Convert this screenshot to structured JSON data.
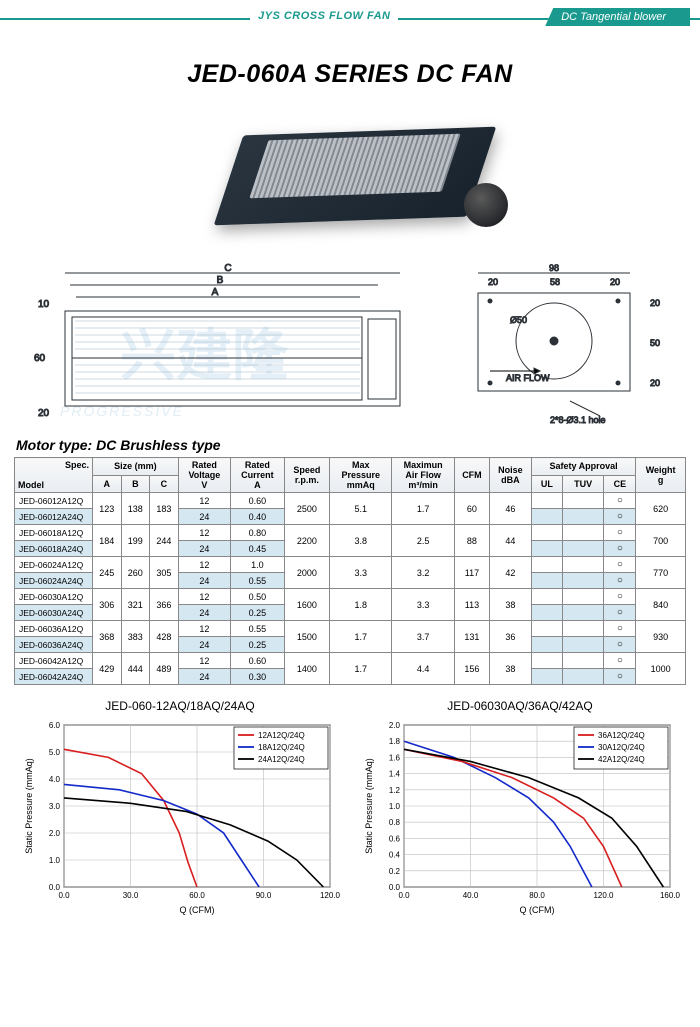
{
  "header": {
    "left_label": "JYS CROSS FLOW FAN",
    "right_label": "DC Tangential blower"
  },
  "title": "JED-060A SERIES DC FAN",
  "watermark": {
    "big": "兴建隆",
    "small": "PROGRESSIVE"
  },
  "diagram": {
    "left_dims": {
      "A": "A",
      "B": "B",
      "C": "C",
      "h60": "60",
      "t10": "10",
      "b20": "20"
    },
    "right_dims": {
      "w98": "98",
      "w20a": "20",
      "w58": "58",
      "w20b": "20",
      "h20a": "20",
      "h50": "50",
      "h20b": "20",
      "d50": "Ø50",
      "airflow": "AIR FLOW",
      "hole": "2*8-Ø3.1 hole"
    }
  },
  "motor_type": "Motor type: DC Brushless type",
  "table": {
    "head": {
      "spec": "Spec.",
      "model": "Model",
      "size": "Size (mm)",
      "A": "A",
      "B": "B",
      "C": "C",
      "rated_v": "Rated\nVoltage\nV",
      "rated_a": "Rated\nCurrent\nA",
      "speed": "Speed\nr.p.m.",
      "maxp": "Max\nPressure\nmmAq",
      "maxaf": "Maximun\nAir Flow\nm³/min",
      "cfm": "CFM",
      "noise": "Noise\ndBA",
      "safety": "Safety Approval",
      "ul": "UL",
      "tuv": "TUV",
      "ce": "CE",
      "weight": "Weight\ng"
    },
    "groups": [
      {
        "models": [
          "JED-06012A12Q",
          "JED-06012A24Q"
        ],
        "A": "123",
        "B": "138",
        "C": "183",
        "rows": [
          {
            "v": "12",
            "a": "0.60"
          },
          {
            "v": "24",
            "a": "0.40"
          }
        ],
        "speed": "2500",
        "maxp": "5.1",
        "maxaf": "1.7",
        "cfm": "60",
        "noise": "46",
        "weight": "620"
      },
      {
        "models": [
          "JED-06018A12Q",
          "JED-06018A24Q"
        ],
        "A": "184",
        "B": "199",
        "C": "244",
        "rows": [
          {
            "v": "12",
            "a": "0.80"
          },
          {
            "v": "24",
            "a": "0.45"
          }
        ],
        "speed": "2200",
        "maxp": "3.8",
        "maxaf": "2.5",
        "cfm": "88",
        "noise": "44",
        "weight": "700"
      },
      {
        "models": [
          "JED-06024A12Q",
          "JED-06024A24Q"
        ],
        "A": "245",
        "B": "260",
        "C": "305",
        "rows": [
          {
            "v": "12",
            "a": "1.0"
          },
          {
            "v": "24",
            "a": "0.55"
          }
        ],
        "speed": "2000",
        "maxp": "3.3",
        "maxaf": "3.2",
        "cfm": "117",
        "noise": "42",
        "weight": "770"
      },
      {
        "models": [
          "JED-06030A12Q",
          "JED-06030A24Q"
        ],
        "A": "306",
        "B": "321",
        "C": "366",
        "rows": [
          {
            "v": "12",
            "a": "0.50"
          },
          {
            "v": "24",
            "a": "0.25"
          }
        ],
        "speed": "1600",
        "maxp": "1.8",
        "maxaf": "3.3",
        "cfm": "113",
        "noise": "38",
        "weight": "840"
      },
      {
        "models": [
          "JED-06036A12Q",
          "JED-06036A24Q"
        ],
        "A": "368",
        "B": "383",
        "C": "428",
        "rows": [
          {
            "v": "12",
            "a": "0.55"
          },
          {
            "v": "24",
            "a": "0.25"
          }
        ],
        "speed": "1500",
        "maxp": "1.7",
        "maxaf": "3.7",
        "cfm": "131",
        "noise": "36",
        "weight": "930"
      },
      {
        "models": [
          "JED-06042A12Q",
          "JED-06042A24Q"
        ],
        "A": "429",
        "B": "444",
        "C": "489",
        "rows": [
          {
            "v": "12",
            "a": "0.60"
          },
          {
            "v": "24",
            "a": "0.30"
          }
        ],
        "speed": "1400",
        "maxp": "1.7",
        "maxaf": "4.4",
        "cfm": "156",
        "noise": "38",
        "weight": "1000"
      }
    ],
    "ce_mark": "○"
  },
  "chart1": {
    "title": "JED-060-12AQ/18AQ/24AQ",
    "xlabel": "Q (CFM)",
    "ylabel": "Static Pressure (mmAq)",
    "xlim": [
      0,
      120
    ],
    "ylim": [
      0,
      6
    ],
    "xticks": [
      0,
      30,
      60,
      90,
      120
    ],
    "yticks": [
      0,
      1,
      2,
      3,
      4,
      5,
      6
    ],
    "xtick_labels": [
      "0.0",
      "30.0",
      "60.0",
      "90.0",
      "120.0"
    ],
    "ytick_labels": [
      "0.0",
      "1.0",
      "2.0",
      "3.0",
      "4.0",
      "5.0",
      "6.0"
    ],
    "grid_color": "#bdbdbd",
    "axis_color": "#000",
    "bg": "#ffffff",
    "legend": [
      {
        "label": "12A12Q/24Q",
        "color": "#d81e1e"
      },
      {
        "label": "18A12Q/24Q",
        "color": "#1329c9"
      },
      {
        "label": "24A12Q/24Q",
        "color": "#000000"
      }
    ],
    "series": [
      {
        "color": "#d81e1e",
        "points": [
          [
            0,
            5.1
          ],
          [
            20,
            4.8
          ],
          [
            35,
            4.2
          ],
          [
            45,
            3.2
          ],
          [
            52,
            2.0
          ],
          [
            56,
            0.9
          ],
          [
            60,
            0
          ]
        ]
      },
      {
        "color": "#1329c9",
        "points": [
          [
            0,
            3.8
          ],
          [
            25,
            3.6
          ],
          [
            45,
            3.2
          ],
          [
            60,
            2.7
          ],
          [
            72,
            2.0
          ],
          [
            80,
            1.0
          ],
          [
            88,
            0
          ]
        ]
      },
      {
        "color": "#000000",
        "points": [
          [
            0,
            3.3
          ],
          [
            30,
            3.1
          ],
          [
            55,
            2.8
          ],
          [
            75,
            2.3
          ],
          [
            92,
            1.7
          ],
          [
            105,
            1.0
          ],
          [
            117,
            0
          ]
        ]
      }
    ]
  },
  "chart2": {
    "title": "JED-06030AQ/36AQ/42AQ",
    "xlabel": "Q (CFM)",
    "ylabel": "Static Pressure (mmAq)",
    "xlim": [
      0,
      160
    ],
    "ylim": [
      0,
      2
    ],
    "xticks": [
      0,
      40,
      80,
      120,
      160
    ],
    "yticks": [
      0,
      0.2,
      0.4,
      0.6,
      0.8,
      1.0,
      1.2,
      1.4,
      1.6,
      1.8,
      2.0
    ],
    "xtick_labels": [
      "0.0",
      "40.0",
      "80.0",
      "120.0",
      "160.0"
    ],
    "ytick_labels": [
      "0.0",
      "0.2",
      "0.4",
      "0.6",
      "0.8",
      "1.0",
      "1.2",
      "1.4",
      "1.6",
      "1.8",
      "2.0"
    ],
    "grid_color": "#bdbdbd",
    "axis_color": "#000",
    "bg": "#ffffff",
    "legend": [
      {
        "label": "36A12Q/24Q",
        "color": "#d81e1e"
      },
      {
        "label": "30A12Q/24Q",
        "color": "#1329c9"
      },
      {
        "label": "42A12Q/24Q",
        "color": "#000000"
      }
    ],
    "series": [
      {
        "color": "#1329c9",
        "points": [
          [
            0,
            1.8
          ],
          [
            30,
            1.6
          ],
          [
            55,
            1.35
          ],
          [
            75,
            1.1
          ],
          [
            90,
            0.8
          ],
          [
            100,
            0.5
          ],
          [
            113,
            0
          ]
        ]
      },
      {
        "color": "#d81e1e",
        "points": [
          [
            0,
            1.7
          ],
          [
            35,
            1.55
          ],
          [
            65,
            1.35
          ],
          [
            90,
            1.1
          ],
          [
            108,
            0.85
          ],
          [
            120,
            0.5
          ],
          [
            131,
            0
          ]
        ]
      },
      {
        "color": "#000000",
        "points": [
          [
            0,
            1.7
          ],
          [
            40,
            1.55
          ],
          [
            75,
            1.35
          ],
          [
            105,
            1.1
          ],
          [
            125,
            0.85
          ],
          [
            140,
            0.5
          ],
          [
            156,
            0
          ]
        ]
      }
    ]
  }
}
